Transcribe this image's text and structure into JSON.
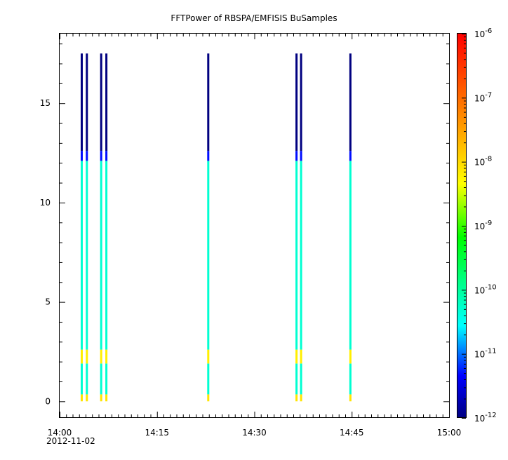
{
  "chart_data": {
    "type": "heatmap",
    "title": "FFTPower of RBSPA/EMFISIS  BuSamples",
    "xlabel": "",
    "ylabel": "",
    "xlim": [
      "14:00",
      "15:00"
    ],
    "ylim": [
      -0.8,
      18.5
    ],
    "x_ticks": [
      {
        "value": 0,
        "label": "14:00"
      },
      {
        "value": 15,
        "label": "14:15"
      },
      {
        "value": 30,
        "label": "14:30"
      },
      {
        "value": 45,
        "label": "14:45"
      },
      {
        "value": 60,
        "label": "15:00"
      }
    ],
    "date_label": "2012-11-02",
    "y_ticks": [
      {
        "value": 0,
        "label": "0"
      },
      {
        "value": 5,
        "label": "5"
      },
      {
        "value": 10,
        "label": "10"
      },
      {
        "value": 15,
        "label": "15"
      }
    ],
    "colorbar": {
      "scale": "log",
      "range": [
        "1e-12",
        "1e-6"
      ],
      "colormap": "rainbow",
      "ticks": [
        {
          "base": "10",
          "exp": "-12",
          "value": -12
        },
        {
          "base": "10",
          "exp": "-11",
          "value": -11
        },
        {
          "base": "10",
          "exp": "-10",
          "value": -10
        },
        {
          "base": "10",
          "exp": "-9",
          "value": -9
        },
        {
          "base": "10",
          "exp": "-8",
          "value": -8
        },
        {
          "base": "10",
          "exp": "-7",
          "value": -7
        },
        {
          "base": "10",
          "exp": "-6",
          "value": -6
        }
      ]
    },
    "bursts": [
      {
        "time": "14:03:24",
        "minute": 3.4
      },
      {
        "time": "14:04:12",
        "minute": 4.2
      },
      {
        "time": "14:06:24",
        "minute": 6.4
      },
      {
        "time": "14:07:12",
        "minute": 7.2
      },
      {
        "time": "14:22:54",
        "minute": 22.9
      },
      {
        "time": "14:36:30",
        "minute": 36.5
      },
      {
        "time": "14:37:12",
        "minute": 37.2
      },
      {
        "time": "14:44:48",
        "minute": 44.8
      }
    ],
    "spectrum_profile": [
      {
        "y_from": 0,
        "y_to": 0.35,
        "log_power": -8.1
      },
      {
        "y_from": 0.35,
        "y_to": 1.9,
        "log_power": -10.3
      },
      {
        "y_from": 1.9,
        "y_to": 2.6,
        "log_power": -8.2
      },
      {
        "y_from": 2.6,
        "y_to": 12.1,
        "log_power": -10.3
      },
      {
        "y_from": 12.1,
        "y_to": 12.6,
        "log_power": -11.3
      },
      {
        "y_from": 12.6,
        "y_to": 17.5,
        "log_power": -12.0
      }
    ],
    "grid": false,
    "legend": "colorbar-right"
  },
  "colors": {
    "axis": "#000000",
    "background": "#ffffff"
  }
}
